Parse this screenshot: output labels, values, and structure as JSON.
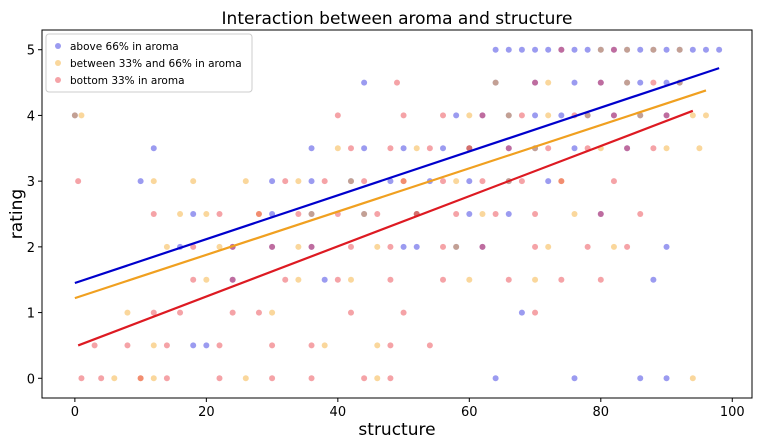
{
  "chart_data": {
    "type": "scatter",
    "title": "Interaction between aroma and structure",
    "x_label": "structure",
    "y_label": "rating",
    "xlim": [
      -5,
      103
    ],
    "ylim": [
      -0.3,
      5.3
    ],
    "xticks": [
      0,
      20,
      40,
      60,
      80,
      100
    ],
    "yticks": [
      0,
      1,
      2,
      3,
      4,
      5
    ],
    "legend": "upper left",
    "series": [
      {
        "name": "above 66% in aroma",
        "color": "#2222dd",
        "x": [
          64,
          66,
          68,
          70,
          72,
          74,
          76,
          78,
          80,
          82,
          84,
          86,
          88,
          90,
          92,
          94,
          96,
          98,
          44,
          64,
          70,
          76,
          80,
          84,
          86,
          90,
          92,
          0,
          58,
          62,
          66,
          70,
          74,
          78,
          82,
          86,
          90,
          12,
          36,
          44,
          50,
          56,
          60,
          66,
          70,
          76,
          84,
          10,
          30,
          36,
          42,
          48,
          54,
          60,
          66,
          72,
          18,
          30,
          36,
          44,
          52,
          60,
          66,
          80,
          16,
          24,
          30,
          36,
          50,
          52,
          58,
          62,
          90,
          24,
          38,
          88,
          68,
          18,
          20,
          64,
          76,
          86,
          90
        ],
        "values": [
          5,
          5,
          5,
          5,
          5,
          5,
          5,
          5,
          5,
          5,
          5,
          5,
          5,
          5,
          5,
          5,
          5,
          5,
          4.5,
          4.5,
          4.5,
          4.5,
          4.5,
          4.5,
          4.5,
          4.5,
          4.5,
          4,
          4,
          4,
          4,
          4,
          4,
          4,
          4,
          4,
          4,
          3.5,
          3.5,
          3.5,
          3.5,
          3.5,
          3.5,
          3.5,
          3.5,
          3.5,
          3.5,
          3,
          3,
          3,
          3,
          3,
          3,
          3,
          3,
          3,
          2.5,
          2.5,
          2.5,
          2.5,
          2.5,
          2.5,
          2.5,
          2.5,
          2,
          2,
          2,
          2,
          2,
          2,
          2,
          2,
          2,
          1.5,
          1.5,
          1.5,
          1,
          0.5,
          0.5,
          0,
          0,
          0,
          0
        ]
      },
      {
        "name": "between 33% and 66% in aroma",
        "color": "#f5a623",
        "x": [
          80,
          84,
          88,
          92,
          64,
          72,
          84,
          92,
          0,
          1,
          60,
          66,
          72,
          78,
          86,
          94,
          96,
          40,
          52,
          60,
          70,
          80,
          90,
          95,
          12,
          18,
          26,
          34,
          42,
          50,
          58,
          66,
          74,
          16,
          20,
          28,
          36,
          44,
          52,
          62,
          76,
          14,
          22,
          34,
          46,
          58,
          72,
          82,
          20,
          34,
          42,
          60,
          70,
          8,
          30,
          12,
          38,
          46,
          6,
          10,
          12,
          26,
          46,
          94
        ],
        "values": [
          5,
          5,
          5,
          5,
          4.5,
          4.5,
          4.5,
          4.5,
          4,
          4,
          4,
          4,
          4,
          4,
          4,
          4,
          4,
          3.5,
          3.5,
          3.5,
          3.5,
          3.5,
          3.5,
          3.5,
          3,
          3,
          3,
          3,
          3,
          3,
          3,
          3,
          3,
          2.5,
          2.5,
          2.5,
          2.5,
          2.5,
          2.5,
          2.5,
          2.5,
          2,
          2,
          2,
          2,
          2,
          2,
          2,
          1.5,
          1.5,
          1.5,
          1.5,
          1.5,
          1,
          1,
          0.5,
          0.5,
          0.5,
          0,
          0,
          0,
          0,
          0,
          0
        ]
      },
      {
        "name": "bottom 33% in aroma",
        "color": "#e8323c",
        "x": [
          74,
          82,
          49,
          70,
          80,
          88,
          40,
          50,
          56,
          62,
          68,
          76,
          82,
          90,
          42,
          48,
          54,
          60,
          66,
          72,
          78,
          84,
          88,
          0.5,
          32,
          38,
          44,
          50,
          56,
          62,
          68,
          74,
          82,
          12,
          22,
          28,
          34,
          40,
          46,
          52,
          58,
          64,
          70,
          80,
          86,
          18,
          24,
          30,
          36,
          42,
          48,
          56,
          62,
          70,
          78,
          84,
          18,
          24,
          32,
          40,
          48,
          56,
          66,
          74,
          80,
          12,
          16,
          24,
          28,
          42,
          50,
          70,
          3,
          8,
          14,
          22,
          30,
          36,
          48,
          54,
          1,
          4,
          10,
          14,
          22,
          30,
          36,
          44,
          48
        ],
        "values": [
          5,
          5,
          4.5,
          4.5,
          4.5,
          4.5,
          4,
          4,
          4,
          4,
          4,
          4,
          4,
          4,
          3.5,
          3.5,
          3.5,
          3.5,
          3.5,
          3.5,
          3.5,
          3.5,
          3.5,
          3,
          3,
          3,
          3,
          3,
          3,
          3,
          3,
          3,
          3,
          2.5,
          2.5,
          2.5,
          2.5,
          2.5,
          2.5,
          2.5,
          2.5,
          2.5,
          2.5,
          2.5,
          2.5,
          2,
          2,
          2,
          2,
          2,
          2,
          2,
          2,
          2,
          2,
          2,
          1.5,
          1.5,
          1.5,
          1.5,
          1.5,
          1.5,
          1.5,
          1.5,
          1.5,
          1,
          1,
          1,
          1,
          1,
          1,
          1,
          0.5,
          0.5,
          0.5,
          0.5,
          0.5,
          0.5,
          0.5,
          0.5,
          0,
          0,
          0,
          0,
          0,
          0,
          0,
          0,
          0
        ]
      }
    ],
    "fit_lines": [
      {
        "color": "#0000cc",
        "x": [
          0,
          98
        ],
        "values": [
          1.45,
          4.72
        ]
      },
      {
        "color": "#f0a020",
        "x": [
          0,
          96
        ],
        "values": [
          1.22,
          4.38
        ]
      },
      {
        "color": "#dd1a22",
        "x": [
          0.5,
          94
        ],
        "values": [
          0.5,
          4.07
        ]
      }
    ]
  }
}
